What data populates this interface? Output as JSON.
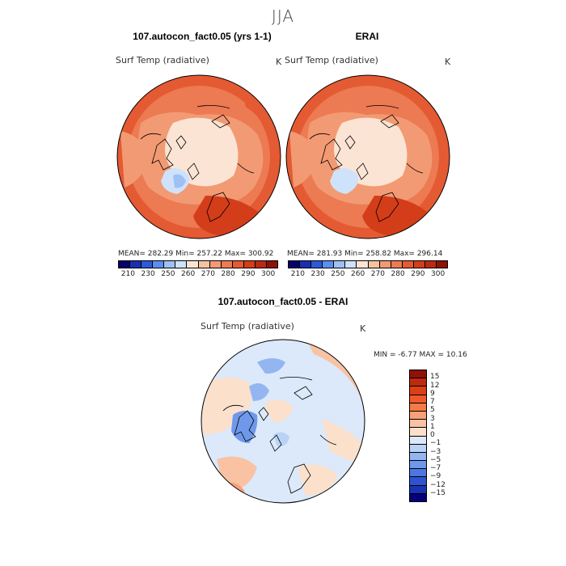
{
  "figure": {
    "title": "JJA"
  },
  "panels": [
    {
      "title": "107.autocon_fact0.05 (yrs 1-1)",
      "variable": "Surf Temp (radiative)",
      "units": "K",
      "stats": "MEAN= 282.29   Min= 257.22   Max= 300.92"
    },
    {
      "title": "ERAI",
      "variable": "Surf Temp (radiative)",
      "units": "K",
      "stats": "MEAN= 281.93   Min= 258.82   Max= 296.14"
    },
    {
      "title": "107.autocon_fact0.05 - ERAI",
      "variable": "Surf Temp (radiative)",
      "units": "K",
      "stats": "MIN =   -6.77  MAX =   10.16"
    }
  ],
  "abs_colorbar": {
    "labels": [
      "210",
      "230",
      "250",
      "260",
      "270",
      "280",
      "290",
      "300"
    ],
    "colors": [
      "#08006b",
      "#1a2fb0",
      "#2d5ad8",
      "#5b8ef0",
      "#9ec0f5",
      "#cfe2fb",
      "#fbe4d4",
      "#f8c2a1",
      "#f29a73",
      "#ec7a52",
      "#e45a32",
      "#d43d1a",
      "#b92a12",
      "#8e1208"
    ]
  },
  "diff_colorbar": {
    "labels": [
      "15",
      "12",
      "9",
      "7",
      "5",
      "3",
      "1",
      "0",
      "−1",
      "−3",
      "−5",
      "−7",
      "−9",
      "−12",
      "−15"
    ],
    "colors": [
      "#8e1208",
      "#bd2a10",
      "#dc3f16",
      "#ee5a2a",
      "#f47a48",
      "#f7a07a",
      "#f9c2a2",
      "#fbe0cc",
      "#dbe9fb",
      "#b9d2f6",
      "#93b6f1",
      "#6f98ea",
      "#4c76e1",
      "#2f52d2",
      "#1933b4",
      "#07007a"
    ]
  }
}
